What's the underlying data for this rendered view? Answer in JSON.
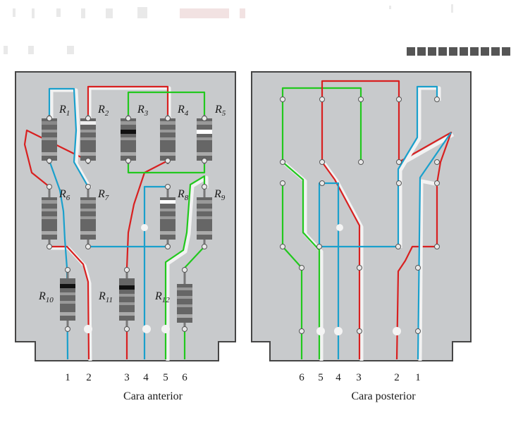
{
  "front_board": {
    "caption": "Cara anterior",
    "pins": [
      "1",
      "2",
      "3",
      "4",
      "5",
      "6"
    ],
    "resistors": [
      {
        "main": "R",
        "sub": "1"
      },
      {
        "main": "R",
        "sub": "2"
      },
      {
        "main": "R",
        "sub": "3"
      },
      {
        "main": "R",
        "sub": "4"
      },
      {
        "main": "R",
        "sub": "5"
      },
      {
        "main": "R",
        "sub": "6"
      },
      {
        "main": "R",
        "sub": "7"
      },
      {
        "main": "R",
        "sub": "8"
      },
      {
        "main": "R",
        "sub": "9"
      },
      {
        "main": "R",
        "sub": "10"
      },
      {
        "main": "R",
        "sub": "11"
      },
      {
        "main": "R",
        "sub": "12"
      }
    ]
  },
  "back_board": {
    "caption": "Cara posterior",
    "pins": [
      "6",
      "5",
      "4",
      "3",
      "2",
      "1"
    ]
  },
  "colors": {
    "board": "#c8cacc",
    "board_edge": "#454545",
    "red_wire": "#d82020",
    "green_wire": "#22c81e",
    "blue_wire": "#1aa0cc",
    "wire_shadow": "#f2f2f2"
  }
}
